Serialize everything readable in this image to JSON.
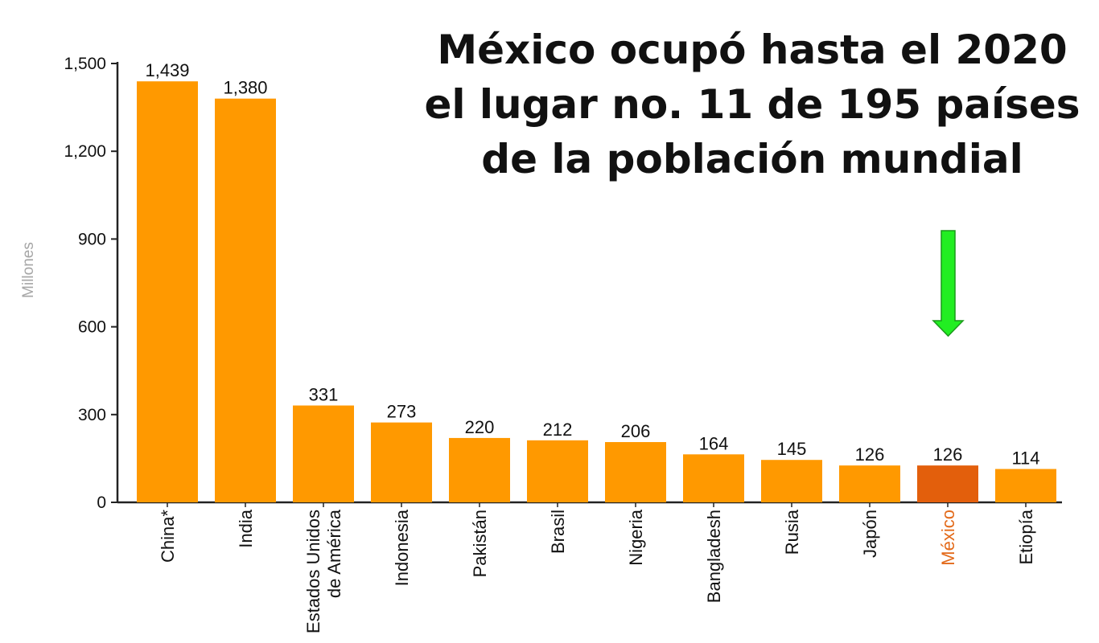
{
  "headline": {
    "lines": [
      "México ocupó hasta el 2020",
      "el lugar no. 11 de 195 países",
      "de la población mundial"
    ]
  },
  "colors": {
    "bar": "#FF9900",
    "highlight_bar": "#E35F0C",
    "highlight_label": "#E36A1A",
    "arrow": "#22EE22",
    "axis": "#222222",
    "ylabel": "#A6A6A6"
  },
  "icons": {
    "pointer": "down-arrow-icon"
  },
  "chart_data": {
    "type": "bar",
    "ylabel": "Millones",
    "xlabel": "",
    "ylim": [
      0,
      1500
    ],
    "yticks": [
      "0",
      "300",
      "600",
      "900",
      "1,200",
      "1,500"
    ],
    "ytick_values": [
      0,
      300,
      600,
      900,
      1200,
      1500
    ],
    "categories": [
      "China*",
      "India",
      [
        "Estados Unidos",
        "de América"
      ],
      "Indonesia",
      "Pakistán",
      "Brasil",
      "Nigeria",
      "Bangladesh",
      "Rusia",
      "Japón",
      "México",
      "Etiopía"
    ],
    "values": [
      1439,
      1380,
      331,
      273,
      220,
      212,
      206,
      164,
      145,
      126,
      126,
      114
    ],
    "value_labels": [
      "1,439",
      "1,380",
      "331",
      "273",
      "220",
      "212",
      "206",
      "164",
      "145",
      "126",
      "126",
      "114"
    ],
    "highlight_category": "México",
    "grid": false
  }
}
